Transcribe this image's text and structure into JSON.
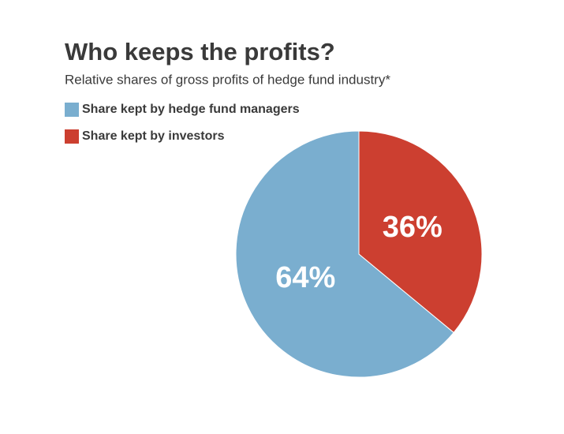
{
  "chart_data": {
    "type": "pie",
    "title": "Who keeps the profits?",
    "subtitle": "Relative shares of gross profits of hedge fund industry*",
    "categories": [
      "Share kept by hedge fund managers",
      "Share kept by investors"
    ],
    "values": [
      64,
      36
    ],
    "value_labels": [
      "64%",
      "36%"
    ],
    "colors": [
      "#7aaecf",
      "#cc3f30"
    ]
  }
}
